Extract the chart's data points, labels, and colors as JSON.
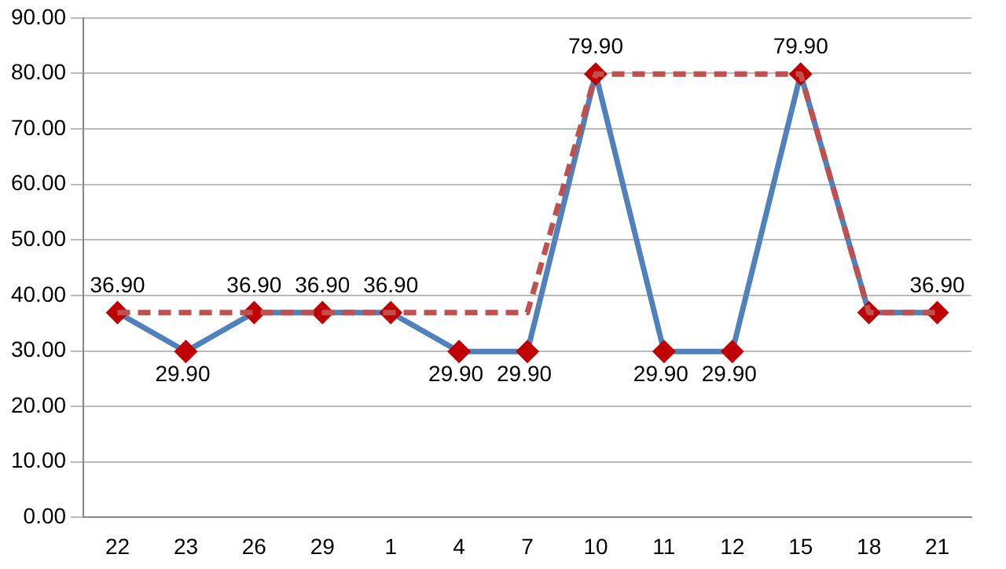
{
  "chart_data": {
    "type": "line",
    "categories": [
      "22",
      "23",
      "26",
      "29",
      "1",
      "4",
      "7",
      "10",
      "11",
      "12",
      "15",
      "18",
      "21"
    ],
    "series": [
      {
        "color": "#4f81bd",
        "line_style": "solid",
        "marker": "diamond",
        "colors": [
          "#c00000",
          "#c00000",
          "#c00000",
          "#c00000",
          "#c00000",
          "#c00000",
          "#c00000",
          "#c00000",
          "#c00000",
          "#c00000",
          "#c00000",
          "#c00000",
          "#c00000"
        ],
        "values": [
          36.9,
          29.9,
          36.9,
          36.9,
          36.9,
          29.9,
          29.9,
          79.9,
          29.9,
          29.9,
          79.9,
          36.9,
          36.9
        ],
        "value_labels": [
          "36.90",
          "29.90",
          "36.90",
          "36.90",
          "36.90",
          "29.90",
          "29.90",
          "79.90",
          "29.90",
          "29.90",
          "79.90",
          null,
          "36.90"
        ]
      },
      {
        "color": "#c0504d",
        "line_style": "dashed",
        "marker": "none",
        "values": [
          36.9,
          36.9,
          36.9,
          36.9,
          36.9,
          36.9,
          36.9,
          79.9,
          79.9,
          79.9,
          79.9,
          36.9,
          36.9
        ]
      }
    ],
    "ylim": [
      0,
      90
    ],
    "yticks": [
      {
        "value": 0,
        "label": "0.00"
      },
      {
        "value": 10,
        "label": "10.00"
      },
      {
        "value": 20,
        "label": "20.00"
      },
      {
        "value": 30,
        "label": "30.00"
      },
      {
        "value": 40,
        "label": "40.00"
      },
      {
        "value": 50,
        "label": "50.00"
      },
      {
        "value": 60,
        "label": "60.00"
      },
      {
        "value": 70,
        "label": "70.00"
      },
      {
        "value": 80,
        "label": "80.00"
      },
      {
        "value": 90,
        "label": "90.00"
      }
    ],
    "grid": "y",
    "legend": false
  }
}
